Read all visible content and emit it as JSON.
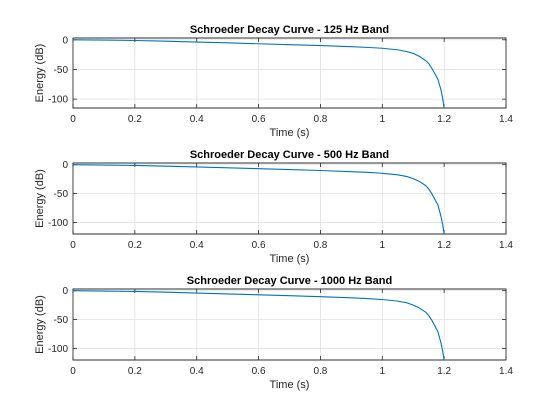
{
  "chart_data": [
    {
      "type": "line",
      "title": "Schroeder Decay Curve - 125 Hz Band",
      "xlabel": "Time (s)",
      "ylabel": "Energy (dB)",
      "xlim": [
        0,
        1.4
      ],
      "ylim": [
        -115,
        3
      ],
      "xticks": [
        0,
        0.2,
        0.4,
        0.6,
        0.8,
        1,
        1.2,
        1.4
      ],
      "xtick_labels": [
        "0",
        "0.2",
        "0.4",
        "0.6",
        "0.8",
        "1",
        "1.2",
        "1.4"
      ],
      "yticks": [
        0,
        -50,
        -100
      ],
      "ytick_labels": [
        "0",
        "-50",
        "-100"
      ],
      "grid": true,
      "series": [
        {
          "color": "#0072BD",
          "x": [
            0,
            0.1,
            0.2,
            0.3,
            0.4,
            0.5,
            0.6,
            0.7,
            0.8,
            0.9,
            0.95,
            1.0,
            1.05,
            1.08,
            1.1,
            1.12,
            1.14,
            1.15,
            1.16,
            1.17,
            1.18,
            1.185,
            1.19,
            1.195,
            1.2
          ],
          "y": [
            0,
            -0.4,
            -1.2,
            -2.4,
            -3.8,
            -5.2,
            -6.7,
            -8.2,
            -9.8,
            -11.7,
            -12.8,
            -14.3,
            -17,
            -20,
            -23,
            -28,
            -35,
            -40,
            -48,
            -57,
            -67,
            -76,
            -85,
            -98,
            -115
          ]
        }
      ]
    },
    {
      "type": "line",
      "title": "Schroeder Decay Curve - 500 Hz Band",
      "xlabel": "Time (s)",
      "ylabel": "Energy (dB)",
      "xlim": [
        0,
        1.4
      ],
      "ylim": [
        -120,
        3
      ],
      "xticks": [
        0,
        0.2,
        0.4,
        0.6,
        0.8,
        1,
        1.2,
        1.4
      ],
      "xtick_labels": [
        "0",
        "0.2",
        "0.4",
        "0.6",
        "0.8",
        "1",
        "1.2",
        "1.4"
      ],
      "yticks": [
        0,
        -50,
        -100
      ],
      "ytick_labels": [
        "0",
        "-50",
        "-100"
      ],
      "grid": true,
      "series": [
        {
          "color": "#0072BD",
          "x": [
            0,
            0.1,
            0.2,
            0.3,
            0.4,
            0.5,
            0.6,
            0.7,
            0.8,
            0.9,
            0.95,
            1.0,
            1.05,
            1.08,
            1.1,
            1.12,
            1.14,
            1.15,
            1.16,
            1.17,
            1.18,
            1.185,
            1.19,
            1.195,
            1.2
          ],
          "y": [
            0,
            -0.5,
            -1.3,
            -2.5,
            -3.9,
            -5.3,
            -6.8,
            -8.4,
            -10,
            -12,
            -13.2,
            -14.8,
            -17.5,
            -20.5,
            -24,
            -29,
            -36,
            -42,
            -50,
            -60,
            -70,
            -80,
            -90,
            -103,
            -120
          ]
        }
      ]
    },
    {
      "type": "line",
      "title": "Schroeder Decay Curve - 1000 Hz Band",
      "xlabel": "Time (s)",
      "ylabel": "Energy (dB)",
      "xlim": [
        0,
        1.4
      ],
      "ylim": [
        -120,
        3
      ],
      "xticks": [
        0,
        0.2,
        0.4,
        0.6,
        0.8,
        1,
        1.2,
        1.4
      ],
      "xtick_labels": [
        "0",
        "0.2",
        "0.4",
        "0.6",
        "0.8",
        "1",
        "1.2",
        "1.4"
      ],
      "yticks": [
        0,
        -50,
        -100
      ],
      "ytick_labels": [
        "0",
        "-50",
        "-100"
      ],
      "grid": true,
      "series": [
        {
          "color": "#0072BD",
          "x": [
            0,
            0.1,
            0.2,
            0.3,
            0.4,
            0.5,
            0.6,
            0.7,
            0.8,
            0.9,
            0.95,
            1.0,
            1.05,
            1.08,
            1.1,
            1.12,
            1.14,
            1.15,
            1.16,
            1.17,
            1.18,
            1.185,
            1.19,
            1.195,
            1.2
          ],
          "y": [
            0,
            -0.5,
            -1.3,
            -2.6,
            -4,
            -5.5,
            -7,
            -8.6,
            -10.3,
            -12.3,
            -13.5,
            -15.2,
            -18,
            -21,
            -25,
            -30,
            -37,
            -43,
            -51,
            -61,
            -71,
            -81,
            -91,
            -104,
            -120
          ]
        }
      ]
    }
  ]
}
